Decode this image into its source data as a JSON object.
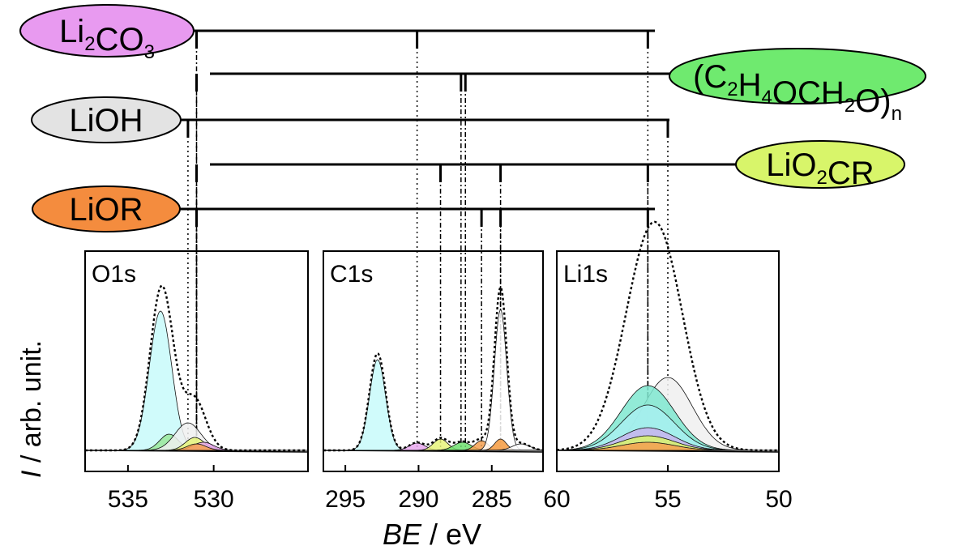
{
  "chart_data": {
    "type": "line",
    "ylabel_italic": "I",
    "ylabel_rest": " / arb. unit.",
    "xlabel_italic": "BE",
    "xlabel_rest": " / eV",
    "species": [
      {
        "key": "li2co3",
        "name": "Li",
        "sub1": "2",
        "mid": "CO",
        "sub2": "3",
        "color": "#e89af0",
        "peaks": {
          "O1s": 531.1,
          "C1s": 290.1,
          "Li1s": 55.9
        }
      },
      {
        "key": "polymer",
        "name": "(C",
        "sub1": "2",
        "mid": "H",
        "sub2": "4",
        "tail": "OCH",
        "sub3": "2",
        "tail2": "O)",
        "sub4": "n",
        "color": "#6fea6f",
        "peaks": {
          "O1s": 531.1,
          "C1s": 286.8,
          "C1s_b": 287.1
        }
      },
      {
        "key": "lioh",
        "name": "LiOH",
        "color": "#e3e3e3",
        "peaks": {
          "O1s": 531.5,
          "Li1s": 55.0
        }
      },
      {
        "key": "lio2cr",
        "name": "LiO",
        "sub1": "2",
        "mid": "CR",
        "color": "#d8f56a",
        "peaks": {
          "O1s": 531.1,
          "C1s": 288.5,
          "C1s_b": 284.4,
          "Li1s": 55.9
        }
      },
      {
        "key": "lior",
        "name": "LiOR",
        "color": "#f48c3e",
        "peaks": {
          "O1s": 531.1,
          "C1s": 285.7,
          "C1s_b": 284.4,
          "Li1s": 55.9
        }
      }
    ],
    "panels": [
      {
        "title": "O1s",
        "xlim": [
          537.5,
          524.5
        ],
        "ticks": [
          535,
          530
        ],
        "tick_labels": [
          "535",
          "530"
        ],
        "components": [
          {
            "center": 533.1,
            "height": 0.86,
            "width": 0.65,
            "color": "#c8fafa"
          },
          {
            "center": 532.6,
            "height": 0.1,
            "width": 0.55,
            "color": "#9ae89a"
          },
          {
            "center": 531.5,
            "height": 0.17,
            "width": 0.75,
            "color": "#f0f0f0"
          },
          {
            "center": 531.1,
            "height": 0.08,
            "width": 0.55,
            "color": "#e6f57a"
          },
          {
            "center": 530.6,
            "height": 0.05,
            "width": 0.6,
            "color": "#e9a8ee"
          },
          {
            "center": 531.0,
            "height": 0.04,
            "width": 0.55,
            "color": "#f4a050"
          }
        ]
      },
      {
        "title": "C1s",
        "xlim": [
          296.5,
          281.5
        ],
        "ticks": [
          295,
          290,
          285
        ],
        "tick_labels": [
          "295",
          "290",
          "285"
        ],
        "components": [
          {
            "center": 292.8,
            "height": 0.56,
            "width": 0.55,
            "color": "#c8fafa"
          },
          {
            "center": 290.1,
            "height": 0.045,
            "width": 0.55,
            "color": "#e9a8ee"
          },
          {
            "center": 288.5,
            "height": 0.07,
            "width": 0.5,
            "color": "#e6f57a"
          },
          {
            "center": 287.0,
            "height": 0.05,
            "width": 0.6,
            "color": "#6fdf6f"
          },
          {
            "center": 285.7,
            "height": 0.06,
            "width": 0.45,
            "color": "#f4a050"
          },
          {
            "center": 284.4,
            "height": 0.87,
            "width": 0.42,
            "color": "#ffffff"
          },
          {
            "center": 284.4,
            "height": 0.07,
            "width": 0.4,
            "color": "#f49a3e"
          },
          {
            "center": 283.0,
            "height": 0.04,
            "width": 0.6,
            "color": "#ffffff"
          }
        ]
      },
      {
        "title": "Li1s",
        "xlim": [
          60,
          50
        ],
        "ticks": [
          60,
          55,
          50
        ],
        "tick_labels": [
          "60",
          "55",
          "50"
        ],
        "components": [
          {
            "center": 55.0,
            "height": 0.45,
            "width": 1.1,
            "color": "#f0f0f0"
          },
          {
            "center": 55.9,
            "height": 0.4,
            "width": 1.2,
            "color": "#7fe8d0"
          },
          {
            "center": 55.9,
            "height": 0.28,
            "width": 1.2,
            "color": "#a8f0f0"
          },
          {
            "center": 55.9,
            "height": 0.14,
            "width": 1.2,
            "color": "#c8b4ee"
          },
          {
            "center": 55.9,
            "height": 0.09,
            "width": 1.2,
            "color": "#d8f56a"
          },
          {
            "center": 55.9,
            "height": 0.05,
            "width": 1.2,
            "color": "#f4a050"
          }
        ]
      }
    ]
  }
}
